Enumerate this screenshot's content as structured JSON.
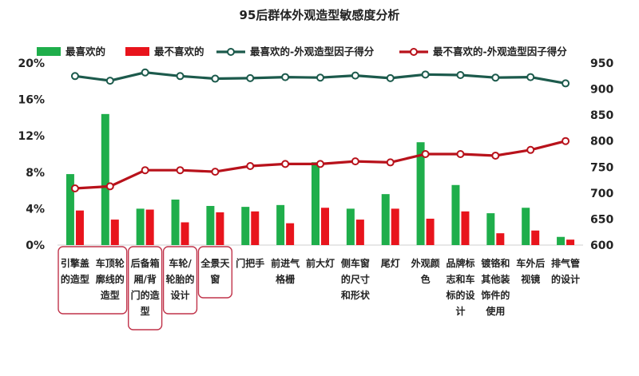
{
  "chart_data": {
    "type": "bar+line",
    "title": "95后群体外观造型敏感度分析",
    "categories": [
      [
        "引擎盖",
        "的造型"
      ],
      [
        "车顶轮",
        "廓线的",
        "造型"
      ],
      [
        "后备箱",
        "厢/背",
        "门的造",
        "型"
      ],
      [
        "车轮/",
        "轮胎的",
        "设计"
      ],
      [
        "全景天",
        "窗"
      ],
      [
        "门把手"
      ],
      [
        "前进气",
        "格栅"
      ],
      [
        "前大灯"
      ],
      [
        "侧车窗",
        "的尺寸",
        "和形状"
      ],
      [
        "尾灯"
      ],
      [
        "外观颜",
        "色"
      ],
      [
        "品牌标",
        "志和车",
        "标的设",
        "计"
      ],
      [
        "镀铬和",
        "其他装",
        "饰件的",
        "使用"
      ],
      [
        "车外后",
        "视镜"
      ],
      [
        "排气管",
        "的设计"
      ]
    ],
    "left_axis": {
      "ticks": [
        "0%",
        "4%",
        "8%",
        "12%",
        "16%",
        "20%"
      ],
      "min": 0,
      "max": 20
    },
    "right_axis": {
      "ticks": [
        "600",
        "650",
        "700",
        "750",
        "800",
        "850",
        "900",
        "950"
      ],
      "min": 600,
      "max": 950
    },
    "series": [
      {
        "name": "最喜欢的",
        "kind": "bar",
        "axis": "left",
        "color": "#1fae4b",
        "values": [
          7.8,
          14.4,
          4.0,
          5.0,
          4.3,
          4.2,
          4.4,
          9.1,
          4.0,
          5.6,
          11.3,
          6.6,
          3.5,
          4.1,
          0.9
        ]
      },
      {
        "name": "最不喜欢的",
        "kind": "bar",
        "axis": "left",
        "color": "#e8141c",
        "values": [
          3.8,
          2.8,
          3.9,
          2.5,
          3.6,
          3.7,
          2.4,
          4.1,
          2.8,
          4.0,
          2.9,
          3.7,
          1.3,
          1.6,
          0.6
        ]
      },
      {
        "name": "最喜欢的-外观造型因子得分",
        "kind": "line",
        "axis": "right",
        "color": "#1c5a4c",
        "values": [
          925,
          916,
          932,
          925,
          920,
          921,
          923,
          922,
          926,
          921,
          928,
          927,
          922,
          923,
          911
        ]
      },
      {
        "name": "最不喜欢的-外观造型因子得分",
        "kind": "line",
        "axis": "right",
        "color": "#b8121b",
        "values": [
          709,
          713,
          744,
          744,
          741,
          752,
          756,
          756,
          761,
          759,
          775,
          775,
          772,
          783,
          800
        ]
      }
    ],
    "highlighted_groups": [
      [
        0,
        1
      ],
      [
        2
      ],
      [
        3
      ],
      [
        4
      ]
    ],
    "highlight_color": "#c0334a",
    "legend_placement": "top"
  }
}
